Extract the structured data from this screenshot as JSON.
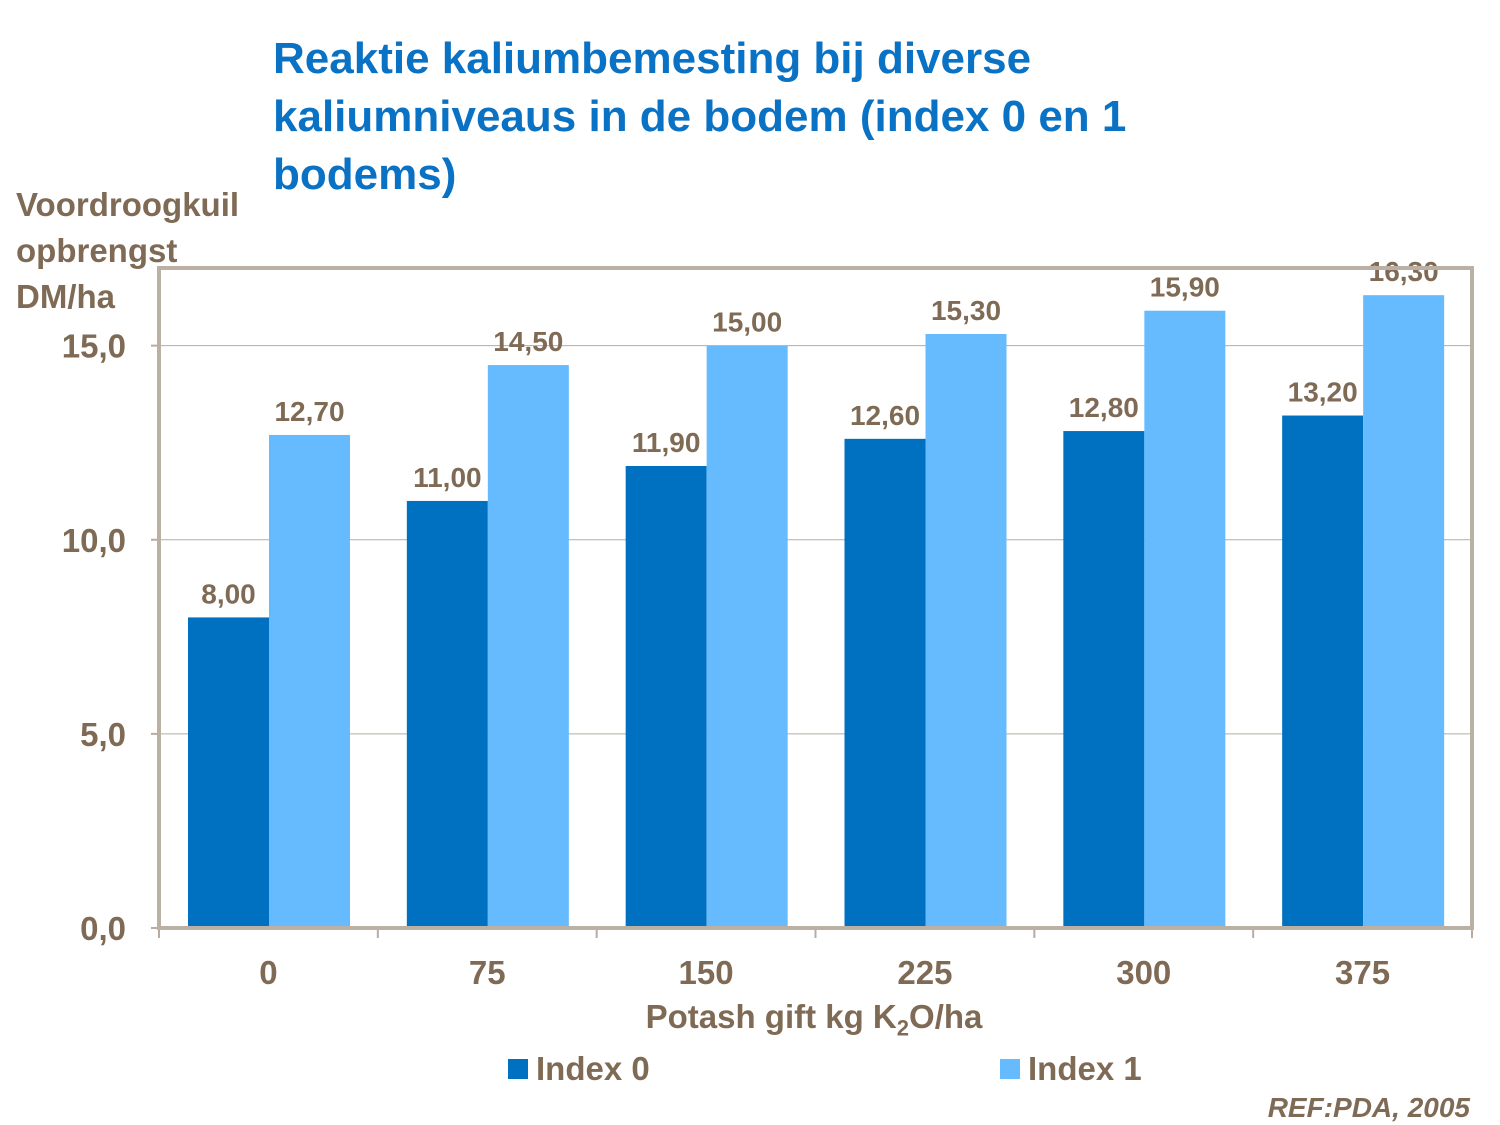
{
  "chart_data": {
    "type": "bar",
    "title": "Reaktie kaliumbemesting bij diverse kaliumniveaus in de bodem (index 0 en 1 bodems)",
    "ylabel": "Voordroogkuil opbrengst DM/ha",
    "xlabel_pre": "Potash gift kg K",
    "xlabel_sub": "2",
    "xlabel_post": "O/ha",
    "categories": [
      "0",
      "75",
      "150",
      "225",
      "300",
      "375"
    ],
    "series": [
      {
        "name": "Index 0",
        "color": "#0070c0",
        "values": [
          8.0,
          11.0,
          11.9,
          12.6,
          12.8,
          13.2
        ],
        "labels": [
          "8,00",
          "11,00",
          "11,90",
          "12,60",
          "12,80",
          "13,20"
        ]
      },
      {
        "name": "Index 1",
        "color": "#66bbff",
        "values": [
          12.7,
          14.5,
          15.0,
          15.3,
          15.9,
          16.3
        ],
        "labels": [
          "12,70",
          "14,50",
          "15,00",
          "15,30",
          "15,90",
          "16,30"
        ]
      }
    ],
    "ylim": [
      0,
      17
    ],
    "yticks": [
      0,
      5,
      10,
      15
    ],
    "ytick_labels": [
      "0,0",
      "5,0",
      "10,0",
      "15,0"
    ],
    "grid": true,
    "legend": "bottom"
  },
  "reference": "REF:PDA, 2005"
}
